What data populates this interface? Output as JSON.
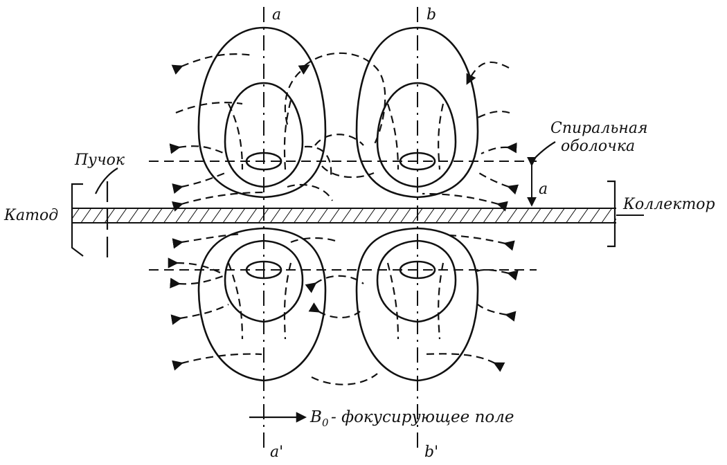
{
  "labels": {
    "cathode": "Катод",
    "beam": "Пучок",
    "collector": "Коллектор",
    "helix_line1": "Спиральная",
    "helix_line2": "оболочка",
    "radius": "a",
    "axis_a": "a",
    "axis_b": "b",
    "axis_a_prime": "a'",
    "axis_b_prime": "b'",
    "field_symbol": "B",
    "field_subscript": "0",
    "field_text": "- фокусирующее поле"
  }
}
